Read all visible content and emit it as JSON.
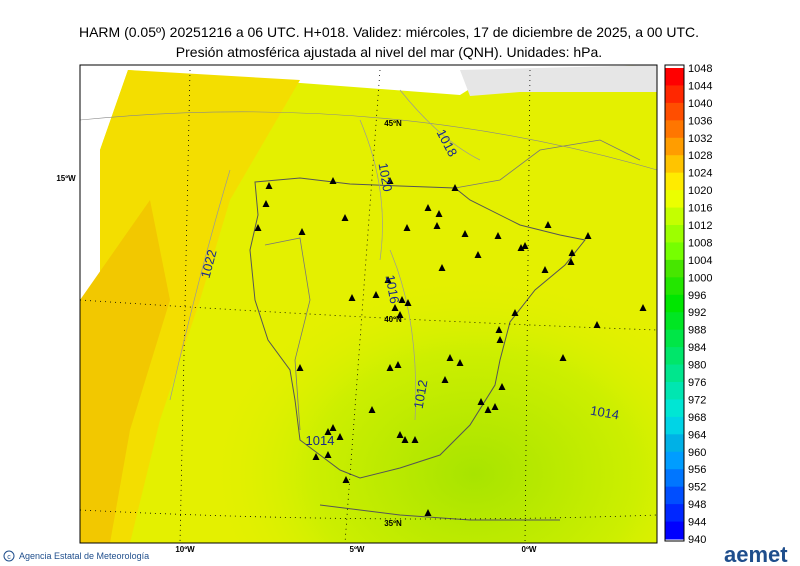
{
  "header": {
    "line1": "HARM (0.05º) 20251216 a 06 UTC. H+018. Validez: miércoles, 17 de diciembre de 2025, a 00 UTC.",
    "line2": "Presión atmosférica ajustada al nivel del mar (QNH). Unidades: hPa."
  },
  "colorbar": {
    "labels": [
      1048,
      1044,
      1040,
      1036,
      1032,
      1028,
      1024,
      1020,
      1016,
      1012,
      1008,
      1004,
      1000,
      996,
      992,
      988,
      984,
      980,
      976,
      972,
      968,
      964,
      960,
      956,
      952,
      948,
      944,
      940
    ]
  },
  "contours": [
    "1018",
    "1020",
    "1022",
    "1016",
    "1012",
    "1014",
    "1014"
  ],
  "grid_labels": [
    "15ºW",
    "45ºN",
    "40ºN",
    "35ºN",
    "10ºW",
    "5ºW",
    "0ºW"
  ],
  "footer": {
    "agency": "Agencia Estatal de Meteorología",
    "logo": "aemet"
  }
}
